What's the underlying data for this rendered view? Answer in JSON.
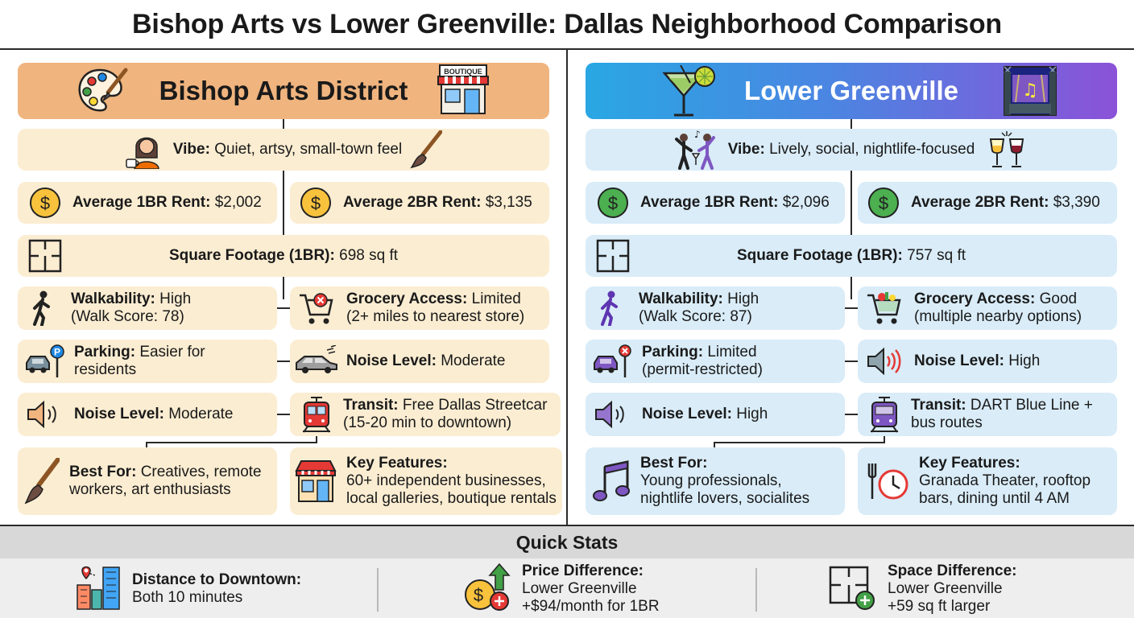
{
  "title": "Bishop Arts vs Lower Greenville: Dallas Neighborhood Comparison",
  "left": {
    "name": "Bishop Arts District",
    "shop_sign": "BOUTIQUE",
    "vibe": {
      "label": "Vibe:",
      "value": "Quiet, artsy, small-town feel"
    },
    "rent1": {
      "label": "Average 1BR Rent:",
      "value": "$2,002"
    },
    "rent2": {
      "label": "Average 2BR Rent:",
      "value": "$3,135"
    },
    "sqft": {
      "label": "Square Footage (1BR):",
      "value": "698 sq ft"
    },
    "walk": {
      "label": "Walkability:",
      "value": "High",
      "line2": "(Walk Score: 78)"
    },
    "grocery": {
      "label": "Grocery Access:",
      "value": "Limited",
      "line2": "(2+ miles to nearest store)"
    },
    "parking": {
      "label": "Parking:",
      "value": "Easier for",
      "line2": "residents"
    },
    "noise_a": {
      "label": "Noise Level:",
      "value": "Moderate"
    },
    "noise_b": {
      "label": "Noise Level:",
      "value": "Moderate"
    },
    "transit": {
      "label": "Transit:",
      "value": "Free Dallas Streetcar",
      "line2": "(15-20 min to downtown)"
    },
    "best": {
      "label": "Best For:",
      "value": "Creatives, remote",
      "line2": "workers, art enthusiasts"
    },
    "features": {
      "label": "Key Features:",
      "line1": "60+ independent businesses,",
      "line2": "local galleries, boutique rentals"
    },
    "accent": "#f0b47e",
    "box_bg": "#fbedd2"
  },
  "right": {
    "name": "Lower Greenville",
    "vibe": {
      "label": "Vibe:",
      "value": "Lively, social, nightlife-focused"
    },
    "rent1": {
      "label": "Average 1BR Rent:",
      "value": "$2,096"
    },
    "rent2": {
      "label": "Average 2BR Rent:",
      "value": "$3,390"
    },
    "sqft": {
      "label": "Square Footage (1BR):",
      "value": "757 sq ft"
    },
    "walk": {
      "label": "Walkability:",
      "value": "High",
      "line2": "(Walk Score: 87)"
    },
    "grocery": {
      "label": "Grocery Access:",
      "value": "Good",
      "line2": "(multiple nearby options)"
    },
    "parking": {
      "label": "Parking:",
      "value": "Limited",
      "line2": "(permit-restricted)"
    },
    "noise_a": {
      "label": "Noise Level:",
      "value": "High"
    },
    "noise_b": {
      "label": "Noise Level:",
      "value": "High"
    },
    "transit": {
      "label": "Transit:",
      "value": "DART Blue Line +",
      "line2": "bus routes"
    },
    "best": {
      "label": "Best For:",
      "line1": "Young professionals,",
      "line2": "nightlife lovers, socialites"
    },
    "features": {
      "label": "Key Features:",
      "line1": "Granada Theater, rooftop",
      "line2": "bars, dining until 4 AM"
    },
    "accent": "#4a86e2",
    "box_bg": "#d9ecf8"
  },
  "quick_stats": {
    "heading": "Quick Stats",
    "distance": {
      "label": "Distance to Downtown:",
      "line1": "Both 10 minutes"
    },
    "price": {
      "label": "Price Difference:",
      "line1": "Lower Greenville",
      "line2": "+$94/month for 1BR"
    },
    "space": {
      "label": "Space Difference:",
      "line1": "Lower Greenville",
      "line2": "+59 sq ft larger"
    }
  }
}
